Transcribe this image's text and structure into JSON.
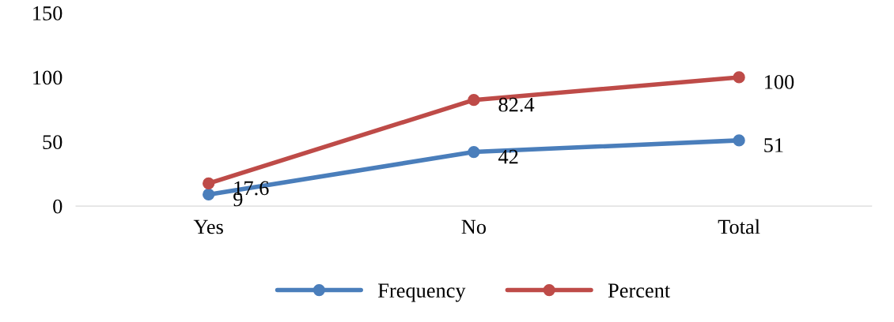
{
  "chart_data": {
    "type": "line",
    "categories": [
      "Yes",
      "No",
      "Total"
    ],
    "series": [
      {
        "name": "Frequency",
        "color": "#4a7ebb",
        "values": [
          9,
          42,
          51
        ]
      },
      {
        "name": "Percent",
        "color": "#be4b48",
        "values": [
          17.6,
          82.4,
          100
        ]
      }
    ],
    "ylim": [
      0,
      150
    ],
    "yticks": [
      0,
      50,
      100,
      150
    ],
    "data_labels": true,
    "marker": "circle",
    "legend": "bottom",
    "grid": false
  }
}
